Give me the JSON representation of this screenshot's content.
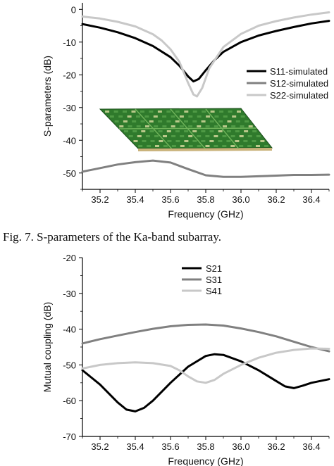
{
  "caption": "Fig. 7. S-parameters of the Ka-band subarray.",
  "chart_data": [
    {
      "type": "line",
      "title": "",
      "xlabel": "Frequency (GHz)",
      "ylabel": "S-parameters (dB)",
      "xlim": [
        35.1,
        36.5
      ],
      "ylim": [
        -55,
        2
      ],
      "xticks": [
        35.2,
        35.4,
        35.6,
        35.8,
        36.0,
        36.2,
        36.4
      ],
      "xtick_labels": [
        "35.2",
        "35.4",
        "35.6",
        "35.8",
        "36.0",
        "36.2",
        "36.4"
      ],
      "yticks": [
        0,
        -10,
        -20,
        -30,
        -40,
        -50
      ],
      "ytick_labels": [
        "0",
        "-10",
        "-20",
        "-30",
        "-40",
        "-50"
      ],
      "grid": false,
      "legend_position": "right",
      "inset_image": "pcb-subarray-photo",
      "series": [
        {
          "name": "S11-simulated",
          "color": "#000000",
          "x": [
            35.1,
            35.2,
            35.3,
            35.4,
            35.5,
            35.6,
            35.65,
            35.7,
            35.73,
            35.76,
            35.8,
            35.85,
            35.9,
            36.0,
            36.1,
            36.2,
            36.3,
            36.4,
            36.5
          ],
          "y": [
            -4.5,
            -5.6,
            -7.0,
            -8.8,
            -11.2,
            -14.6,
            -17.2,
            -20.5,
            -22.0,
            -21.3,
            -18.6,
            -15.5,
            -13.0,
            -10.0,
            -8.0,
            -6.6,
            -5.4,
            -4.3,
            -3.5
          ]
        },
        {
          "name": "S12-simulated",
          "color": "#808080",
          "x": [
            35.1,
            35.2,
            35.3,
            35.4,
            35.5,
            35.6,
            35.7,
            35.8,
            35.9,
            36.0,
            36.1,
            36.2,
            36.3,
            36.4,
            36.5
          ],
          "y": [
            -49.6,
            -48.5,
            -47.4,
            -46.7,
            -46.2,
            -46.8,
            -48.8,
            -50.7,
            -51.2,
            -51.2,
            -51.0,
            -50.8,
            -50.6,
            -50.6,
            -50.5
          ]
        },
        {
          "name": "S22-simulated",
          "color": "#c8c8c8",
          "x": [
            35.1,
            35.2,
            35.3,
            35.4,
            35.5,
            35.55,
            35.6,
            35.65,
            35.7,
            35.73,
            35.75,
            35.78,
            35.82,
            35.9,
            36.0,
            36.1,
            36.2,
            36.3,
            36.4,
            36.5
          ],
          "y": [
            -2.2,
            -2.8,
            -3.8,
            -5.2,
            -7.6,
            -9.5,
            -12.2,
            -16.0,
            -22.5,
            -26.0,
            -26.6,
            -24.0,
            -18.0,
            -11.5,
            -7.5,
            -5.0,
            -3.6,
            -2.5,
            -1.6,
            -0.9
          ]
        }
      ]
    },
    {
      "type": "line",
      "title": "",
      "xlabel": "Frequency (GHz)",
      "ylabel": "Mutual coupling (dB)",
      "xlim": [
        35.1,
        36.5
      ],
      "ylim": [
        -70,
        -20
      ],
      "xticks": [
        35.2,
        35.4,
        35.6,
        35.8,
        36.0,
        36.2,
        36.4
      ],
      "xtick_labels": [
        "35.2",
        "35.4",
        "35.6",
        "35.8",
        "36.0",
        "36.2",
        "36.4"
      ],
      "yticks": [
        -20,
        -30,
        -40,
        -50,
        -60,
        -70
      ],
      "ytick_labels": [
        "-20",
        "-30",
        "-40",
        "-50",
        "-60",
        "-70"
      ],
      "grid": false,
      "legend_position": "top-center",
      "series": [
        {
          "name": "S21",
          "color": "#000000",
          "x": [
            35.1,
            35.2,
            35.3,
            35.35,
            35.4,
            35.45,
            35.5,
            35.6,
            35.7,
            35.8,
            35.85,
            35.9,
            36.0,
            36.1,
            36.2,
            36.25,
            36.3,
            36.35,
            36.4,
            36.5
          ],
          "y": [
            -51.5,
            -55.5,
            -60.5,
            -62.5,
            -63.0,
            -62.0,
            -60.0,
            -55.0,
            -50.5,
            -47.5,
            -47.0,
            -47.2,
            -49.0,
            -51.5,
            -54.5,
            -56.0,
            -56.5,
            -55.8,
            -55.0,
            -54.0
          ]
        },
        {
          "name": "S31",
          "color": "#808080",
          "x": [
            35.1,
            35.2,
            35.3,
            35.4,
            35.5,
            35.6,
            35.7,
            35.8,
            35.9,
            36.0,
            36.1,
            36.2,
            36.3,
            36.4,
            36.5
          ],
          "y": [
            -44.0,
            -42.8,
            -41.8,
            -40.8,
            -39.9,
            -39.2,
            -38.8,
            -38.7,
            -39.0,
            -39.8,
            -40.8,
            -42.0,
            -43.5,
            -45.0,
            -46.2
          ]
        },
        {
          "name": "S41",
          "color": "#c8c8c8",
          "x": [
            35.1,
            35.2,
            35.3,
            35.4,
            35.5,
            35.6,
            35.65,
            35.7,
            35.75,
            35.8,
            35.85,
            35.9,
            36.0,
            36.1,
            36.2,
            36.3,
            36.4,
            36.5
          ],
          "y": [
            -51.0,
            -50.0,
            -49.5,
            -49.3,
            -49.5,
            -50.3,
            -51.5,
            -53.2,
            -54.6,
            -55.0,
            -54.2,
            -52.5,
            -50.0,
            -48.0,
            -46.6,
            -45.8,
            -45.4,
            -45.5
          ]
        }
      ]
    }
  ]
}
